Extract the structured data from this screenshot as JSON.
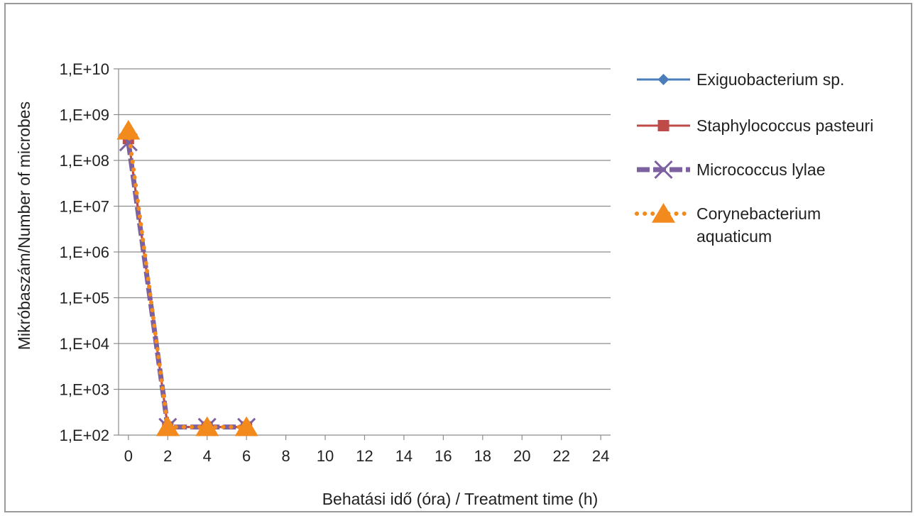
{
  "chart_data": {
    "type": "line",
    "title": "",
    "xlabel": "Behatási idő (óra) / Treatment time (h)",
    "ylabel": "Mikróbaszám/Number  of microbes",
    "yscale": "log",
    "ylim": [
      100,
      10000000000
    ],
    "xlim": [
      -0.5,
      24.5
    ],
    "y_tick_labels": [
      "1,E+02",
      "1,E+03",
      "1,E+04",
      "1,E+05",
      "1,E+06",
      "1,E+07",
      "1,E+08",
      "1,E+09",
      "1,E+10"
    ],
    "y_tick_values": [
      100,
      1000,
      10000,
      100000,
      1000000,
      10000000,
      100000000,
      1000000000,
      10000000000
    ],
    "x_ticks": [
      0,
      2,
      4,
      6,
      8,
      10,
      12,
      14,
      16,
      18,
      20,
      22,
      24
    ],
    "grid": true,
    "legend_position": "right",
    "series": [
      {
        "name": "Exiguobacterium sp.",
        "color": "#4a7ebb",
        "marker": "diamond",
        "line": "solid",
        "x": [
          0,
          2,
          4,
          6
        ],
        "y": [
          300000000,
          150,
          150,
          150
        ]
      },
      {
        "name": "Staphylococcus pasteuri",
        "color": "#be4b48",
        "marker": "square",
        "line": "solid",
        "x": [
          0,
          2,
          4,
          6
        ],
        "y": [
          300000000,
          150,
          150,
          150
        ]
      },
      {
        "name": "Micrococcus lylae",
        "color": "#7d60a0",
        "marker": "x",
        "line": "dashed-thick",
        "x": [
          0,
          2,
          4,
          6
        ],
        "y": [
          250000000,
          150,
          150,
          150
        ]
      },
      {
        "name": "Corynebacterium aquaticum",
        "color": "#f38a1d",
        "marker": "triangle",
        "line": "dotted",
        "x": [
          0,
          2,
          4,
          6
        ],
        "y": [
          450000000,
          150,
          150,
          150
        ]
      }
    ]
  }
}
